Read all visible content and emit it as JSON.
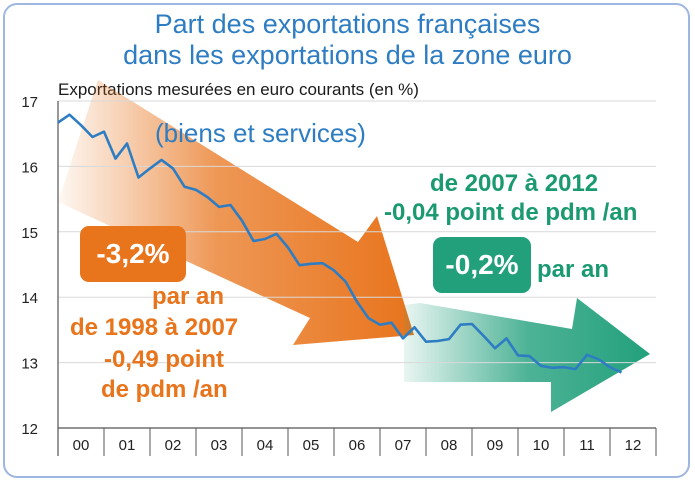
{
  "title": {
    "line1": "Part des exportations françaises",
    "line2": "dans les exportations de la zone euro"
  },
  "subtitle": "Exportations mesurées en euro courants (en %)",
  "series_label": "(biens et services)",
  "annotations": {
    "orange_box": "-3,2%",
    "orange_par_an": "par an",
    "orange_period": "de 1998 à 2007",
    "orange_point": "-0,49 point",
    "orange_pdm": "de pdm /an",
    "green_period": "de 2007 à 2012",
    "green_point": "-0,04 point de pdm /an",
    "green_box": "-0,2%",
    "green_par_an": "par an"
  },
  "colors": {
    "line": "#2e7dc3",
    "title": "#2e7dc3",
    "orange": "#e8741c",
    "green": "#22a07c",
    "grid": "#d9d9d9"
  },
  "chart_data": {
    "type": "line",
    "title": "Part des exportations françaises dans les exportations de la zone euro",
    "ylabel": "Exportations mesurées en euro courants (en %)",
    "xlabel": "",
    "categories": [
      "00",
      "01",
      "02",
      "03",
      "04",
      "05",
      "06",
      "07",
      "08",
      "09",
      "10",
      "11",
      "12"
    ],
    "ylim": [
      12,
      17
    ],
    "yticks": [
      12,
      13,
      14,
      15,
      16,
      17
    ],
    "x_range": [
      0,
      13
    ],
    "series": [
      {
        "name": "(biens et services)",
        "x": [
          0,
          0.25,
          0.5,
          0.75,
          1,
          1.25,
          1.5,
          1.75,
          2,
          2.25,
          2.5,
          2.75,
          3,
          3.25,
          3.5,
          3.75,
          4,
          4.25,
          4.5,
          4.75,
          5,
          5.25,
          5.5,
          5.75,
          6,
          6.25,
          6.5,
          6.75,
          7,
          7.25,
          7.5,
          7.75,
          8,
          8.25,
          8.5,
          8.75,
          9,
          9.25,
          9.5,
          9.75,
          10,
          10.25,
          10.5,
          10.75,
          11,
          11.25,
          11.5,
          11.75,
          12,
          12.25
        ],
        "values": [
          16.67,
          16.79,
          16.63,
          16.45,
          16.53,
          16.12,
          16.35,
          15.83,
          15.97,
          16.1,
          15.97,
          15.69,
          15.64,
          15.53,
          15.38,
          15.41,
          15.17,
          14.86,
          14.89,
          14.97,
          14.76,
          14.49,
          14.51,
          14.52,
          14.41,
          14.24,
          13.93,
          13.68,
          13.58,
          13.61,
          13.37,
          13.54,
          13.32,
          13.33,
          13.36,
          13.58,
          13.59,
          13.41,
          13.22,
          13.37,
          13.11,
          13.1,
          12.95,
          12.92,
          12.93,
          12.9,
          13.12,
          13.05,
          12.93,
          12.85
        ]
      }
    ]
  }
}
